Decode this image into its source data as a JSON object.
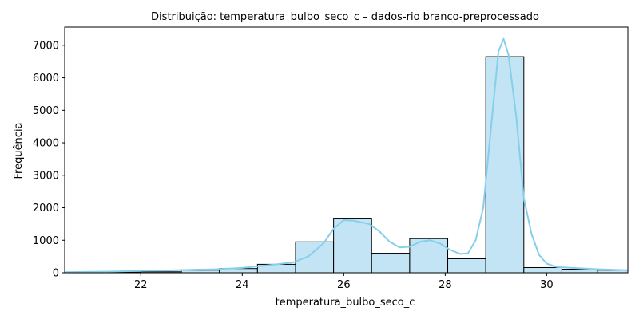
{
  "chart_data": {
    "type": "bar",
    "subtype": "histogram_with_kde",
    "title": "Distribuição: temperatura_bulbo_seco_c – dados-rio branco-preprocessado",
    "xlabel": "temperatura_bulbo_seco_c",
    "ylabel": "Frequência",
    "xlim": [
      20.5,
      31.6
    ],
    "ylim": [
      0,
      7560
    ],
    "xticks": [
      22,
      24,
      26,
      28,
      30
    ],
    "yticks": [
      0,
      1000,
      2000,
      3000,
      4000,
      5000,
      6000,
      7000
    ],
    "bar_color": "#c2e4f4",
    "bar_edge_color": "#000000",
    "kde_color": "#87ceeb",
    "bins": [
      {
        "x0": 20.5,
        "x1": 21.25,
        "value": 20
      },
      {
        "x0": 21.25,
        "x1": 22.0,
        "value": 20
      },
      {
        "x0": 22.0,
        "x1": 22.8,
        "value": 30
      },
      {
        "x0": 22.8,
        "x1": 23.55,
        "value": 80
      },
      {
        "x0": 23.55,
        "x1": 24.3,
        "value": 130
      },
      {
        "x0": 24.3,
        "x1": 25.05,
        "value": 260
      },
      {
        "x0": 25.05,
        "x1": 25.8,
        "value": 950
      },
      {
        "x0": 25.8,
        "x1": 26.55,
        "value": 1680
      },
      {
        "x0": 26.55,
        "x1": 27.3,
        "value": 600
      },
      {
        "x0": 27.3,
        "x1": 28.05,
        "value": 1050
      },
      {
        "x0": 28.05,
        "x1": 28.8,
        "value": 430
      },
      {
        "x0": 28.8,
        "x1": 29.55,
        "value": 6650
      },
      {
        "x0": 29.55,
        "x1": 30.3,
        "value": 160
      },
      {
        "x0": 30.3,
        "x1": 31.0,
        "value": 110
      },
      {
        "x0": 31.0,
        "x1": 31.6,
        "value": 80
      }
    ],
    "kde": {
      "x": [
        20.5,
        21.0,
        21.5,
        22.0,
        22.5,
        23.0,
        23.5,
        24.0,
        24.5,
        25.0,
        25.3,
        25.6,
        25.8,
        26.0,
        26.2,
        26.5,
        26.7,
        26.9,
        27.1,
        27.3,
        27.5,
        27.7,
        27.9,
        28.1,
        28.3,
        28.45,
        28.6,
        28.75,
        28.9,
        29.05,
        29.15,
        29.25,
        29.4,
        29.55,
        29.7,
        29.85,
        30.0,
        30.2,
        30.5,
        31.0,
        31.6
      ],
      "y": [
        20,
        30,
        40,
        60,
        70,
        90,
        110,
        150,
        230,
        320,
        500,
        900,
        1350,
        1620,
        1600,
        1500,
        1280,
        960,
        780,
        800,
        950,
        1000,
        900,
        700,
        580,
        600,
        1000,
        2000,
        4400,
        6800,
        7200,
        6700,
        4800,
        2300,
        1200,
        550,
        280,
        180,
        150,
        110,
        80
      ]
    }
  }
}
